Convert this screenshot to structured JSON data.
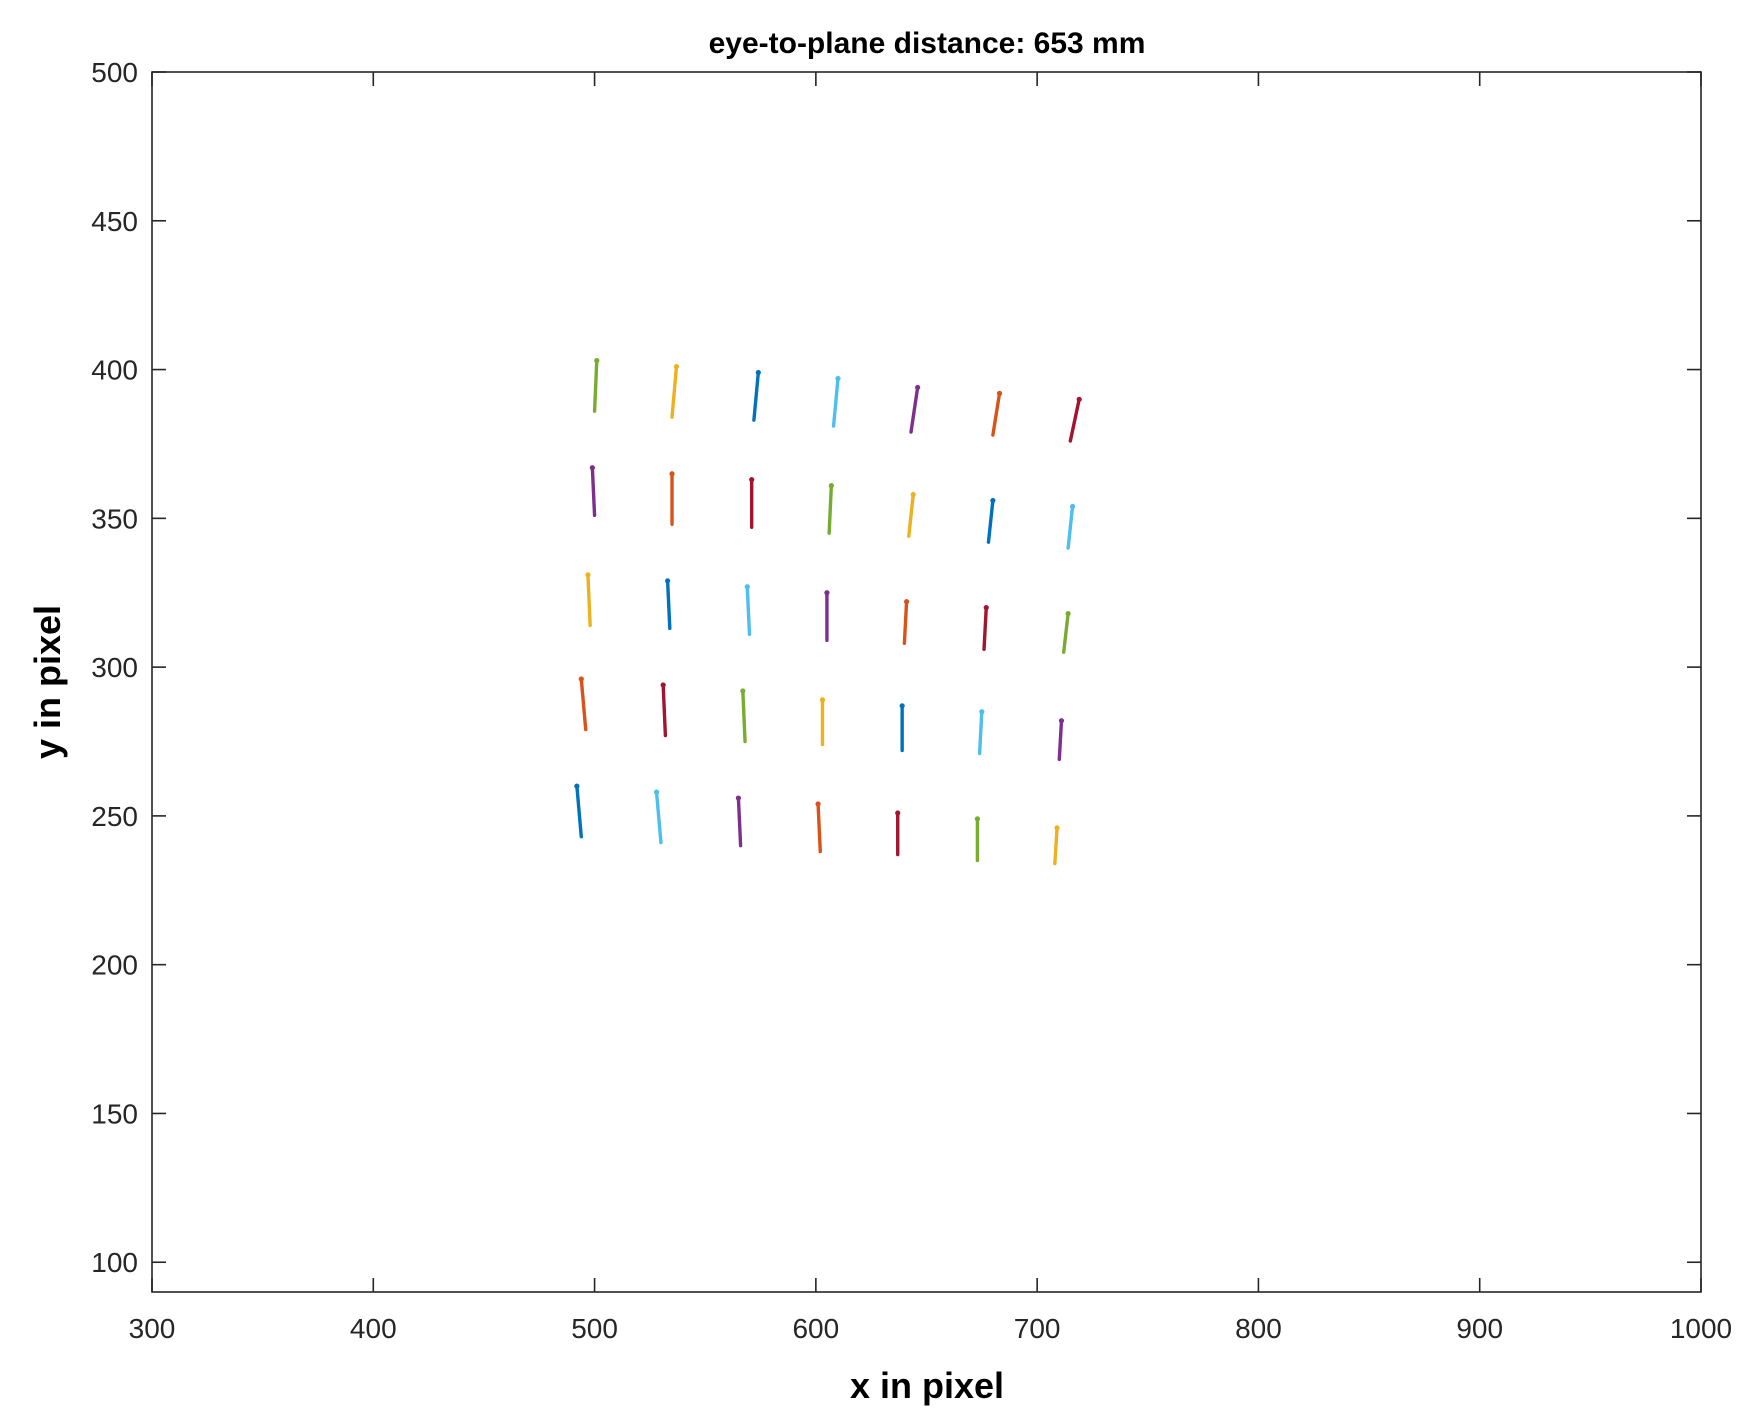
{
  "chart_data": {
    "type": "line",
    "title": "eye-to-plane distance: 653 mm",
    "xlabel": "x in pixel",
    "ylabel": "y in pixel",
    "xlim": [
      300,
      1000
    ],
    "ylim": [
      90,
      500
    ],
    "xticks": [
      300,
      400,
      500,
      600,
      700,
      800,
      900,
      1000
    ],
    "yticks": [
      100,
      150,
      200,
      250,
      300,
      350,
      400,
      450,
      500
    ],
    "xtick_labels": [
      "300",
      "400",
      "500",
      "600",
      "700",
      "800",
      "900",
      "1000"
    ],
    "ytick_labels": [
      "100",
      "150",
      "200",
      "250",
      "300",
      "350",
      "400",
      "450",
      "500"
    ],
    "grid": false,
    "colors": [
      "#0072BD",
      "#D95319",
      "#EDB120",
      "#7E2F8E",
      "#77AC30",
      "#4DBEEE",
      "#A2142F"
    ],
    "segments": [
      {
        "x1": 501,
        "y1": 403,
        "x2": 500,
        "y2": 386,
        "color": "#77AC30"
      },
      {
        "x1": 537,
        "y1": 401,
        "x2": 535,
        "y2": 384,
        "color": "#EDB120"
      },
      {
        "x1": 574,
        "y1": 399,
        "x2": 572,
        "y2": 383,
        "color": "#0072BD"
      },
      {
        "x1": 610,
        "y1": 397,
        "x2": 608,
        "y2": 381,
        "color": "#4DBEEE"
      },
      {
        "x1": 646,
        "y1": 394,
        "x2": 643,
        "y2": 379,
        "color": "#7E2F8E"
      },
      {
        "x1": 683,
        "y1": 392,
        "x2": 680,
        "y2": 378,
        "color": "#D95319"
      },
      {
        "x1": 719,
        "y1": 390,
        "x2": 715,
        "y2": 376,
        "color": "#A2142F"
      },
      {
        "x1": 499,
        "y1": 367,
        "x2": 500,
        "y2": 351,
        "color": "#7E2F8E"
      },
      {
        "x1": 535,
        "y1": 365,
        "x2": 535,
        "y2": 348,
        "color": "#D95319"
      },
      {
        "x1": 571,
        "y1": 363,
        "x2": 571,
        "y2": 347,
        "color": "#A2142F"
      },
      {
        "x1": 607,
        "y1": 361,
        "x2": 606,
        "y2": 345,
        "color": "#77AC30"
      },
      {
        "x1": 644,
        "y1": 358,
        "x2": 642,
        "y2": 344,
        "color": "#EDB120"
      },
      {
        "x1": 680,
        "y1": 356,
        "x2": 678,
        "y2": 342,
        "color": "#0072BD"
      },
      {
        "x1": 716,
        "y1": 354,
        "x2": 714,
        "y2": 340,
        "color": "#4DBEEE"
      },
      {
        "x1": 497,
        "y1": 331,
        "x2": 498,
        "y2": 314,
        "color": "#EDB120"
      },
      {
        "x1": 533,
        "y1": 329,
        "x2": 534,
        "y2": 313,
        "color": "#0072BD"
      },
      {
        "x1": 569,
        "y1": 327,
        "x2": 570,
        "y2": 311,
        "color": "#4DBEEE"
      },
      {
        "x1": 605,
        "y1": 325,
        "x2": 605,
        "y2": 309,
        "color": "#7E2F8E"
      },
      {
        "x1": 641,
        "y1": 322,
        "x2": 640,
        "y2": 308,
        "color": "#D95319"
      },
      {
        "x1": 677,
        "y1": 320,
        "x2": 676,
        "y2": 306,
        "color": "#A2142F"
      },
      {
        "x1": 714,
        "y1": 318,
        "x2": 712,
        "y2": 305,
        "color": "#77AC30"
      },
      {
        "x1": 494,
        "y1": 296,
        "x2": 496,
        "y2": 279,
        "color": "#D95319"
      },
      {
        "x1": 531,
        "y1": 294,
        "x2": 532,
        "y2": 277,
        "color": "#A2142F"
      },
      {
        "x1": 567,
        "y1": 292,
        "x2": 568,
        "y2": 275,
        "color": "#77AC30"
      },
      {
        "x1": 603,
        "y1": 289,
        "x2": 603,
        "y2": 274,
        "color": "#EDB120"
      },
      {
        "x1": 639,
        "y1": 287,
        "x2": 639,
        "y2": 272,
        "color": "#0072BD"
      },
      {
        "x1": 675,
        "y1": 285,
        "x2": 674,
        "y2": 271,
        "color": "#4DBEEE"
      },
      {
        "x1": 711,
        "y1": 282,
        "x2": 710,
        "y2": 269,
        "color": "#7E2F8E"
      },
      {
        "x1": 492,
        "y1": 260,
        "x2": 494,
        "y2": 243,
        "color": "#0072BD"
      },
      {
        "x1": 528,
        "y1": 258,
        "x2": 530,
        "y2": 241,
        "color": "#4DBEEE"
      },
      {
        "x1": 565,
        "y1": 256,
        "x2": 566,
        "y2": 240,
        "color": "#7E2F8E"
      },
      {
        "x1": 601,
        "y1": 254,
        "x2": 602,
        "y2": 238,
        "color": "#D95319"
      },
      {
        "x1": 637,
        "y1": 251,
        "x2": 637,
        "y2": 237,
        "color": "#A2142F"
      },
      {
        "x1": 673,
        "y1": 249,
        "x2": 673,
        "y2": 235,
        "color": "#77AC30"
      },
      {
        "x1": 709,
        "y1": 246,
        "x2": 708,
        "y2": 234,
        "color": "#EDB120"
      }
    ]
  }
}
